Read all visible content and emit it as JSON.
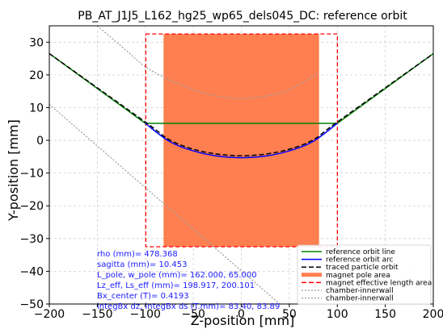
{
  "chart_data": {
    "type": "line",
    "title": "PB_AT_J1J5_L162_hg25_wp65_dels045_DC: reference orbit",
    "xlabel": "Z-position [mm]",
    "ylabel": "Y-position [mm]",
    "xlim": [
      -200,
      200
    ],
    "ylim": [
      -50,
      35
    ],
    "xticks": [
      -200,
      -150,
      -100,
      -50,
      0,
      50,
      100,
      150,
      200
    ],
    "yticks": [
      -50,
      -40,
      -30,
      -20,
      -10,
      0,
      10,
      20,
      30
    ],
    "xtick_labels": [
      "−200",
      "−150",
      "−100",
      "−50",
      "0",
      "50",
      "100",
      "150",
      "200"
    ],
    "ytick_labels": [
      "−50",
      "−40",
      "−30",
      "−20",
      "−10",
      "0",
      "10",
      "20",
      "30"
    ],
    "grid": true,
    "legend_position": "lower-right",
    "series": [
      {
        "name": "reference orbit line",
        "color": "#008000",
        "style": "solid",
        "x": [
          -200,
          -100,
          100,
          200
        ],
        "y": [
          26.5,
          5.2,
          5.2,
          26.5
        ]
      },
      {
        "name": "reference orbit arc",
        "color": "#0000ff",
        "style": "solid",
        "x": [
          -100,
          -75,
          -50,
          -25,
          0,
          25,
          50,
          75,
          100
        ],
        "y": [
          5.2,
          -0.3,
          -3.2,
          -4.8,
          -5.3,
          -4.8,
          -3.2,
          -0.3,
          5.2
        ]
      },
      {
        "name": "traced particle orbit",
        "color": "#000000",
        "style": "dashed",
        "x": [
          -200,
          -100,
          -75,
          -50,
          -25,
          0,
          25,
          50,
          75,
          100,
          200
        ],
        "y": [
          26.5,
          5.6,
          0.2,
          -2.7,
          -4.2,
          -4.7,
          -4.2,
          -2.7,
          0.2,
          5.6,
          26.5
        ]
      },
      {
        "name": "magnet pole area",
        "color": "#ff7f50",
        "style": "fill",
        "x": [
          -81,
          81
        ],
        "y": [
          -32.5,
          32.5
        ]
      },
      {
        "name": "magnet effective length area",
        "color": "#ff0000",
        "style": "dashed",
        "x": [
          -99.5,
          100.1
        ],
        "y": [
          -32.5,
          32.5
        ]
      },
      {
        "name": "chamber-innerwall",
        "color": "#999999",
        "style": "dotted",
        "x": [
          -200,
          40
        ],
        "y": [
          11,
          -50
        ]
      },
      {
        "name": "chamber-innerwall",
        "color": "#999999",
        "style": "dotted",
        "x": [
          -150,
          -120,
          -100,
          -75,
          -50,
          -25,
          0,
          25,
          50,
          80
        ],
        "y": [
          35,
          27.5,
          22.5,
          18.5,
          15.5,
          13.5,
          12.8,
          13.5,
          15.5,
          20.5
        ]
      }
    ]
  },
  "info": {
    "rho": "rho (mm)=  478.368",
    "sagitta": "sagitta (mm)=   10.453",
    "pole": "L_pole, w_pole (mm)=  162.000,    65.000",
    "eff": "Lz_eff, Ls_eff (mm)=  198.917,   200.101",
    "bx": "Bx_center (T)=   0.4193",
    "integ": "integBx dz, integBx ds (T.mm)=  83.40,   83.89"
  }
}
